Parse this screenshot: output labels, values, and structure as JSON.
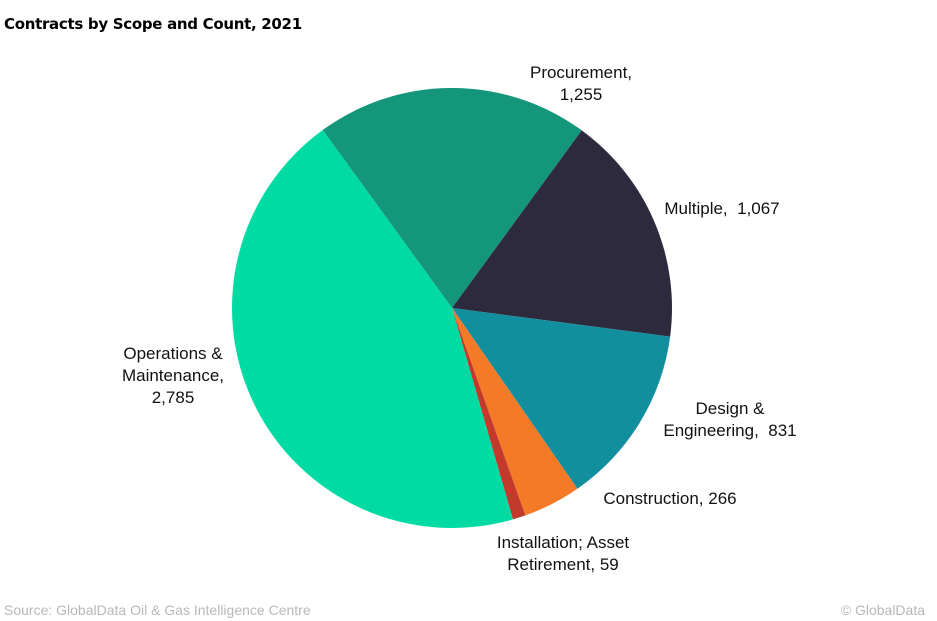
{
  "chart_data": {
    "type": "pie",
    "title": "Contracts by Scope and Count, 2021",
    "start_angle_deg": -36,
    "direction": "clockwise",
    "slices": [
      {
        "label": "Procurement,\n1,255",
        "name": "Procurement",
        "value": 1255,
        "color": "#13967a"
      },
      {
        "label": "Multiple,  1,067",
        "name": "Multiple",
        "value": 1067,
        "color": "#2d2a3e"
      },
      {
        "label": "Design &\nEngineering,  831",
        "name": "Design & Engineering",
        "value": 831,
        "color": "#118f9e"
      },
      {
        "label": "Construction, 266",
        "name": "Construction",
        "value": 266,
        "color": "#f47a28"
      },
      {
        "label": "Installation; Asset\nRetirement, 59",
        "name": "Installation; Asset Retirement",
        "value": 59,
        "color": "#c33a2c"
      },
      {
        "label": "Operations &\nMaintenance,\n2,785",
        "name": "Operations & Maintenance",
        "value": 2785,
        "color": "#00dba3"
      }
    ]
  },
  "footer": {
    "source": "Source: GlobalData Oil & Gas Intelligence Centre",
    "copyright": "© GlobalData"
  }
}
